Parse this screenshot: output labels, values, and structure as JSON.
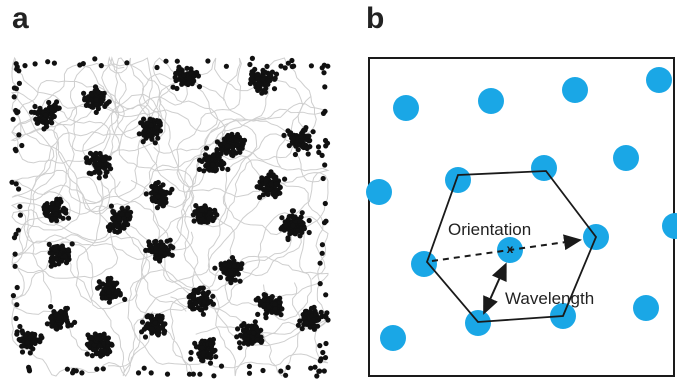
{
  "panels": {
    "a": {
      "label": "a"
    },
    "b": {
      "label": "b"
    }
  },
  "annotations": {
    "orientation": "Orientation",
    "wavelength": "Wavelength",
    "center_marker": "x"
  },
  "colors": {
    "firing_dots": "#111111",
    "trajectory": "#cfcfcf",
    "grid_nodes": "#1aa7e6",
    "hexagon": "#1a1a1a",
    "frame": "#1a1a1a"
  },
  "icons": [
    "dashed-arrow-icon",
    "double-headed-arrow-icon"
  ]
}
